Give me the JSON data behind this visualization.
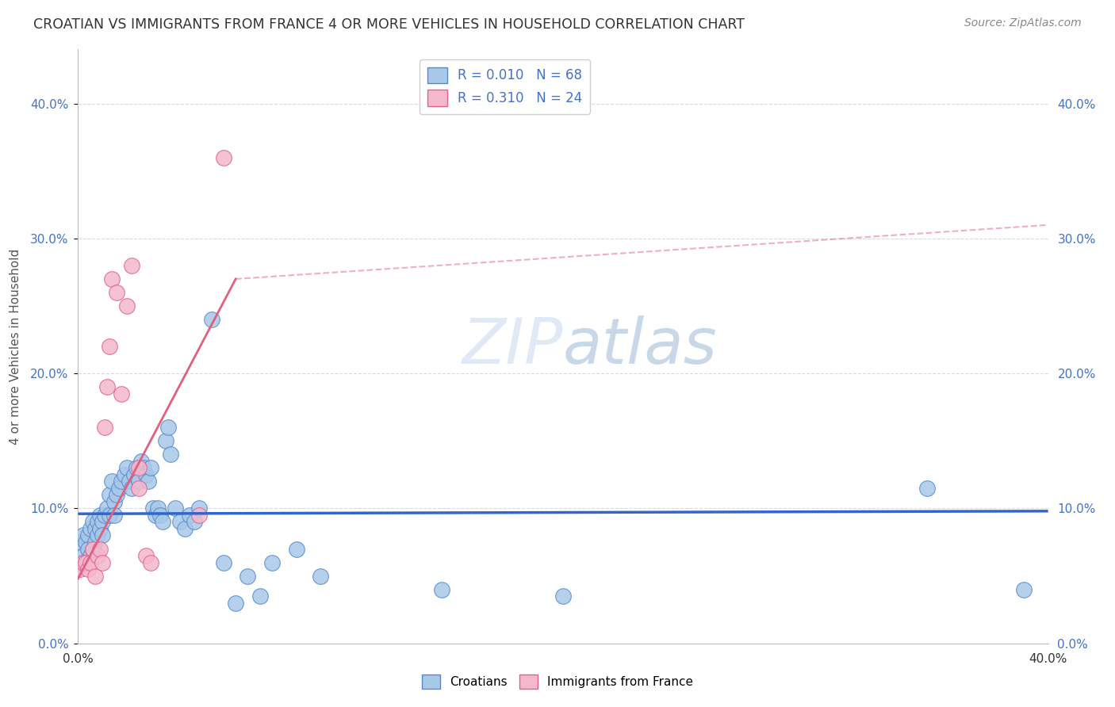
{
  "title": "CROATIAN VS IMMIGRANTS FROM FRANCE 4 OR MORE VEHICLES IN HOUSEHOLD CORRELATION CHART",
  "source": "Source: ZipAtlas.com",
  "ylabel": "4 or more Vehicles in Household",
  "ytick_values": [
    0.0,
    0.1,
    0.2,
    0.3,
    0.4
  ],
  "xlim": [
    0.0,
    0.4
  ],
  "ylim": [
    0.0,
    0.44
  ],
  "croatians_color": "#a8c8e8",
  "croatians_border": "#5588cc",
  "france_color": "#f4b8cc",
  "france_border": "#e06090",
  "trend_croatians_color": "#3366cc",
  "trend_france_color": "#e06080",
  "watermark": "ZIPatlas",
  "r_croatians": "0.010",
  "n_croatians": "68",
  "r_france": "0.310",
  "n_france": "24",
  "legend_label_croatians": "Croatians",
  "legend_label_france": "Immigrants from France",
  "croatians_x": [
    0.001,
    0.001,
    0.002,
    0.002,
    0.003,
    0.003,
    0.004,
    0.004,
    0.005,
    0.005,
    0.006,
    0.006,
    0.007,
    0.007,
    0.008,
    0.008,
    0.009,
    0.009,
    0.01,
    0.01,
    0.011,
    0.012,
    0.013,
    0.013,
    0.014,
    0.015,
    0.015,
    0.016,
    0.017,
    0.018,
    0.019,
    0.02,
    0.021,
    0.022,
    0.023,
    0.024,
    0.025,
    0.026,
    0.027,
    0.028,
    0.029,
    0.03,
    0.031,
    0.032,
    0.033,
    0.034,
    0.035,
    0.036,
    0.037,
    0.038,
    0.04,
    0.042,
    0.044,
    0.046,
    0.048,
    0.05,
    0.055,
    0.06,
    0.065,
    0.07,
    0.075,
    0.08,
    0.09,
    0.1,
    0.15,
    0.2,
    0.35,
    0.39
  ],
  "croatians_y": [
    0.075,
    0.06,
    0.08,
    0.065,
    0.075,
    0.06,
    0.08,
    0.07,
    0.085,
    0.065,
    0.09,
    0.07,
    0.085,
    0.075,
    0.09,
    0.08,
    0.095,
    0.085,
    0.09,
    0.08,
    0.095,
    0.1,
    0.11,
    0.095,
    0.12,
    0.105,
    0.095,
    0.11,
    0.115,
    0.12,
    0.125,
    0.13,
    0.12,
    0.115,
    0.125,
    0.13,
    0.12,
    0.135,
    0.13,
    0.125,
    0.12,
    0.13,
    0.1,
    0.095,
    0.1,
    0.095,
    0.09,
    0.15,
    0.16,
    0.14,
    0.1,
    0.09,
    0.085,
    0.095,
    0.09,
    0.1,
    0.24,
    0.06,
    0.03,
    0.05,
    0.035,
    0.06,
    0.07,
    0.05,
    0.04,
    0.035,
    0.115,
    0.04
  ],
  "france_x": [
    0.001,
    0.002,
    0.003,
    0.004,
    0.005,
    0.006,
    0.007,
    0.008,
    0.009,
    0.01,
    0.011,
    0.012,
    0.013,
    0.014,
    0.016,
    0.018,
    0.02,
    0.022,
    0.025,
    0.025,
    0.028,
    0.03,
    0.05,
    0.06
  ],
  "france_y": [
    0.055,
    0.06,
    0.06,
    0.055,
    0.06,
    0.07,
    0.05,
    0.065,
    0.07,
    0.06,
    0.16,
    0.19,
    0.22,
    0.27,
    0.26,
    0.185,
    0.25,
    0.28,
    0.13,
    0.115,
    0.065,
    0.06,
    0.095,
    0.36
  ],
  "trend_c_x0": 0.0,
  "trend_c_x1": 0.4,
  "trend_c_y0": 0.096,
  "trend_c_y1": 0.098,
  "trend_f_x0": 0.0,
  "trend_f_x1": 0.065,
  "trend_f_y0": 0.048,
  "trend_f_y1": 0.27,
  "trend_f_dash_x0": 0.065,
  "trend_f_dash_x1": 0.4,
  "trend_f_dash_y0": 0.27,
  "trend_f_dash_y1": 0.31
}
